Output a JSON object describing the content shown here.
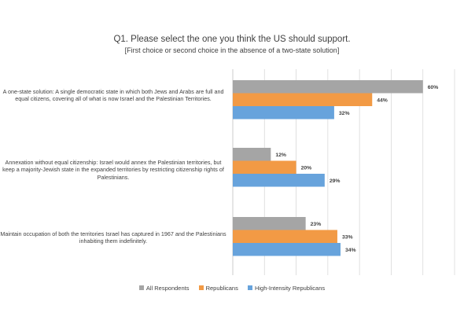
{
  "chart_data": {
    "type": "bar",
    "orientation": "horizontal",
    "title": "Q1. Please select the one you think the US should support.",
    "subtitle": "[First choice or second choice in the absence of a two-state solution]",
    "categories": [
      "A one-state solution: A single democratic state in which both Jews and Arabs are full and equal citizens, covering all of what is now Israel and the Palestinian Territories.",
      "Annexation without equal citizenship: Israel would annex the Palestinian territories, but keep a majority-Jewish state in the expanded territories by restricting citizenship rights of Palestinians.",
      "Maintain occupation of both the territories Israel has captured in 1967 and the Palestinians inhabiting them indefinitely."
    ],
    "series": [
      {
        "name": "All Respondents",
        "color": "#a5a5a5",
        "values": [
          60,
          12,
          23
        ],
        "labels": [
          "60%",
          "12%",
          "23%"
        ]
      },
      {
        "name": "Republicans",
        "color": "#f29a45",
        "values": [
          44,
          20,
          33
        ],
        "labels": [
          "44%",
          "20%",
          "33%"
        ]
      },
      {
        "name": "High-Intensity Republicans",
        "color": "#67a3dc",
        "values": [
          32,
          29,
          34
        ],
        "labels": [
          "32%",
          "29%",
          "34%"
        ]
      }
    ],
    "xlim": [
      0,
      70
    ],
    "grid": true,
    "legend_position": "bottom"
  }
}
